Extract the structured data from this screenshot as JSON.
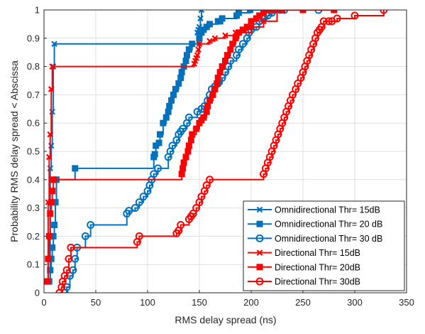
{
  "chart_data": {
    "type": "line",
    "subtype": "empirical-cdf-staircase",
    "xlabel": "RMS delay spread (ns)",
    "ylabel": "Probability RMS delay spread < Abscissa",
    "xlim": [
      0,
      350
    ],
    "ylim": [
      0,
      1
    ],
    "x_ticks": [
      0,
      50,
      100,
      150,
      200,
      250,
      300,
      350
    ],
    "y_ticks": [
      0,
      0.1,
      0.2,
      0.3,
      0.4,
      0.5,
      0.6,
      0.7,
      0.8,
      0.9,
      1
    ],
    "x_tick_labels": [
      "0",
      "50",
      "100",
      "150",
      "200",
      "250",
      "300",
      "350"
    ],
    "y_tick_labels": [
      "0",
      "0.1",
      "0.2",
      "0.3",
      "0.4",
      "0.5",
      "0.6",
      "0.7",
      "0.8",
      "0.9",
      "1"
    ],
    "grid": true,
    "legend_position": "bottom-right",
    "series": [
      {
        "name": "Omnidirectional Thr= 15dB",
        "color": "#0072BD",
        "marker": "x",
        "x": [
          5,
          6,
          7,
          8,
          9,
          10,
          148,
          149,
          150,
          151,
          152
        ],
        "y": [
          0.04,
          0.44,
          0.52,
          0.64,
          0.8,
          0.88,
          0.92,
          0.93,
          0.94,
          0.97,
          1.0
        ]
      },
      {
        "name": "Omnidirectional Thr= 20 dB",
        "color": "#0072BD",
        "marker": "square",
        "x": [
          5,
          6,
          7,
          8,
          9,
          10,
          11,
          12,
          30,
          106,
          107,
          108,
          111,
          112,
          115,
          118,
          120,
          121,
          123,
          125,
          127,
          130,
          132,
          133,
          135,
          137,
          138,
          140,
          143,
          150,
          152,
          154,
          157,
          160,
          168,
          170,
          172,
          186,
          188,
          199,
          225,
          226
        ],
        "y": [
          0.04,
          0.08,
          0.12,
          0.16,
          0.2,
          0.24,
          0.32,
          0.4,
          0.44,
          0.48,
          0.49,
          0.52,
          0.53,
          0.56,
          0.6,
          0.62,
          0.64,
          0.66,
          0.68,
          0.7,
          0.72,
          0.74,
          0.76,
          0.78,
          0.8,
          0.82,
          0.84,
          0.86,
          0.88,
          0.9,
          0.92,
          0.93,
          0.94,
          0.95,
          0.96,
          0.96,
          0.97,
          0.98,
          0.99,
          1.0,
          1.0,
          1.0
        ]
      },
      {
        "name": "Omnidirectional Thr= 30 dB",
        "color": "#0072BD",
        "marker": "circle",
        "x": [
          20,
          22,
          25,
          28,
          30,
          32,
          40,
          45,
          80,
          82,
          88,
          92,
          96,
          100,
          102,
          104,
          106,
          110,
          120,
          122,
          124,
          128,
          130,
          132,
          134,
          138,
          140,
          148,
          152,
          155,
          158,
          160,
          162,
          165,
          168,
          172,
          175,
          178,
          180,
          186,
          188,
          192,
          196,
          198,
          200,
          205,
          208,
          212,
          216,
          220,
          222,
          228,
          232,
          265
        ],
        "y": [
          0.0,
          0.02,
          0.06,
          0.08,
          0.12,
          0.16,
          0.2,
          0.24,
          0.28,
          0.29,
          0.3,
          0.32,
          0.34,
          0.36,
          0.38,
          0.4,
          0.42,
          0.44,
          0.48,
          0.5,
          0.52,
          0.54,
          0.56,
          0.57,
          0.58,
          0.6,
          0.62,
          0.64,
          0.65,
          0.66,
          0.68,
          0.7,
          0.72,
          0.73,
          0.74,
          0.76,
          0.78,
          0.8,
          0.82,
          0.84,
          0.86,
          0.88,
          0.9,
          0.92,
          0.93,
          0.94,
          0.96,
          0.97,
          0.98,
          0.99,
          1.0,
          1.0,
          1.0,
          1.0
        ]
      },
      {
        "name": "Directional Thr= 15dB",
        "color": "#FF0000",
        "marker": "x",
        "x": [
          3,
          4,
          5,
          6,
          7,
          8,
          145,
          146,
          147,
          148,
          149,
          150,
          160,
          165,
          175,
          185,
          200,
          212,
          225
        ],
        "y": [
          0.04,
          0.32,
          0.48,
          0.56,
          0.72,
          0.8,
          0.81,
          0.82,
          0.83,
          0.84,
          0.86,
          0.88,
          0.89,
          0.9,
          0.91,
          0.92,
          0.94,
          0.96,
          1.0
        ]
      },
      {
        "name": "Directional Thr= 20dB",
        "color": "#FF0000",
        "marker": "square",
        "x": [
          3,
          4,
          5,
          6,
          7,
          8,
          9,
          133,
          134,
          135,
          137,
          139,
          140,
          142,
          143,
          147,
          150,
          152,
          154,
          157,
          158,
          160,
          163,
          165,
          167,
          168,
          170,
          172,
          175,
          177,
          180,
          182,
          185,
          188,
          192,
          196,
          200,
          205,
          208,
          212,
          215,
          220,
          230,
          250,
          280
        ],
        "y": [
          0.04,
          0.12,
          0.2,
          0.28,
          0.32,
          0.36,
          0.4,
          0.42,
          0.44,
          0.46,
          0.48,
          0.5,
          0.52,
          0.54,
          0.56,
          0.58,
          0.6,
          0.61,
          0.62,
          0.64,
          0.66,
          0.68,
          0.7,
          0.72,
          0.74,
          0.76,
          0.78,
          0.8,
          0.82,
          0.84,
          0.86,
          0.88,
          0.9,
          0.92,
          0.93,
          0.94,
          0.96,
          0.97,
          0.98,
          0.99,
          1.0,
          1.0,
          1.0,
          1.0,
          1.0
        ]
      },
      {
        "name": "Directional Thr= 30dB",
        "color": "#FF0000",
        "marker": "circle",
        "x": [
          15,
          17,
          18,
          20,
          22,
          24,
          26,
          90,
          92,
          128,
          130,
          132,
          140,
          142,
          144,
          147,
          150,
          152,
          155,
          157,
          160,
          212,
          214,
          216,
          218,
          220,
          222,
          224,
          226,
          228,
          230,
          232,
          234,
          236,
          238,
          240,
          243,
          245,
          248,
          250,
          252,
          254,
          256,
          258,
          260,
          262,
          264,
          266,
          268,
          270,
          275,
          278,
          283,
          300,
          328
        ],
        "y": [
          0.0,
          0.02,
          0.04,
          0.06,
          0.08,
          0.12,
          0.16,
          0.18,
          0.2,
          0.21,
          0.22,
          0.24,
          0.26,
          0.27,
          0.28,
          0.3,
          0.32,
          0.34,
          0.36,
          0.38,
          0.4,
          0.42,
          0.44,
          0.46,
          0.48,
          0.5,
          0.52,
          0.54,
          0.56,
          0.58,
          0.6,
          0.62,
          0.64,
          0.66,
          0.68,
          0.7,
          0.72,
          0.74,
          0.76,
          0.78,
          0.8,
          0.82,
          0.84,
          0.86,
          0.88,
          0.9,
          0.92,
          0.93,
          0.94,
          0.96,
          0.96,
          0.96,
          0.97,
          0.98,
          1.0
        ]
      }
    ]
  }
}
